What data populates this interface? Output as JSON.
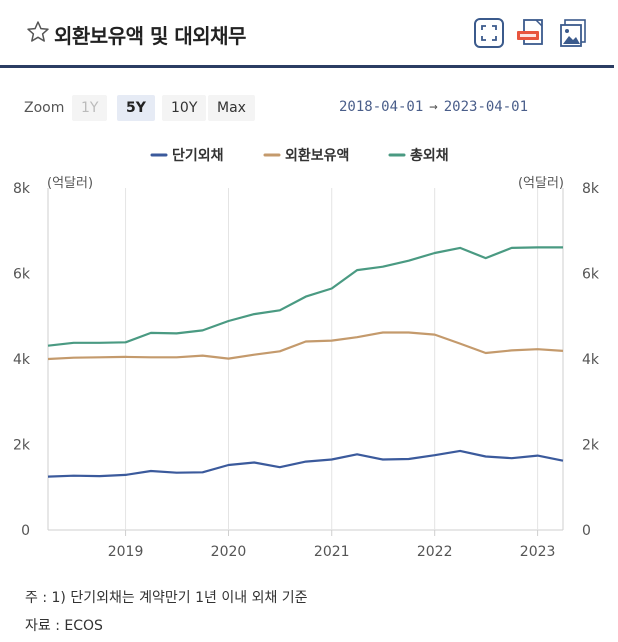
{
  "header": {
    "title": "외환보유액 및 대외채무"
  },
  "range_selector": {
    "zoom_label": "Zoom",
    "buttons": [
      "1Y",
      "5Y",
      "10Y",
      "Max"
    ],
    "selected": "5Y",
    "from": "2018-04-01",
    "arrow": "→",
    "to": "2023-04-01"
  },
  "chart_data": {
    "type": "line",
    "title": "",
    "y_unit_left": "(억달러)",
    "y_unit_right": "(억달러)",
    "ylim": [
      0,
      8000
    ],
    "y_ticks": [
      0,
      2000,
      4000,
      6000,
      8000
    ],
    "y_tick_labels": [
      "0",
      "2k",
      "4k",
      "6k",
      "8k"
    ],
    "x_range": [
      "2018-04-01",
      "2023-04-01"
    ],
    "x_ticks": [
      "2019",
      "2020",
      "2021",
      "2022",
      "2023"
    ],
    "grid": "vertical",
    "legend_position": "top-center",
    "x": [
      "2018-04-01",
      "2018-07-01",
      "2018-10-01",
      "2019-01-01",
      "2019-04-01",
      "2019-07-01",
      "2019-10-01",
      "2020-01-01",
      "2020-04-01",
      "2020-07-01",
      "2020-10-01",
      "2021-01-01",
      "2021-04-01",
      "2021-07-01",
      "2021-10-01",
      "2022-01-01",
      "2022-04-01",
      "2022-07-01",
      "2022-10-01",
      "2023-01-01",
      "2023-04-01"
    ],
    "series": [
      {
        "name": "단기외채",
        "color": "#3b5a9c",
        "values": [
          1250,
          1270,
          1260,
          1290,
          1380,
          1340,
          1350,
          1520,
          1580,
          1470,
          1600,
          1650,
          1770,
          1650,
          1660,
          1750,
          1850,
          1720,
          1680,
          1740,
          1620
        ]
      },
      {
        "name": "외환보유액",
        "color": "#c49a6c",
        "values": [
          4000,
          4030,
          4040,
          4050,
          4040,
          4040,
          4080,
          4010,
          4100,
          4180,
          4410,
          4430,
          4510,
          4620,
          4620,
          4570,
          4360,
          4140,
          4200,
          4230,
          4190
        ]
      },
      {
        "name": "총외채",
        "color": "#4a9a82",
        "values": [
          4310,
          4380,
          4380,
          4390,
          4610,
          4600,
          4670,
          4890,
          5050,
          5140,
          5460,
          5650,
          6080,
          6160,
          6300,
          6480,
          6600,
          6360,
          6600,
          6610,
          6610
        ]
      }
    ]
  },
  "footnotes": {
    "note": "주 : 1)  단기외채는 계약만기 1년 이내 외채 기준",
    "source": "자료 :  ECOS"
  }
}
